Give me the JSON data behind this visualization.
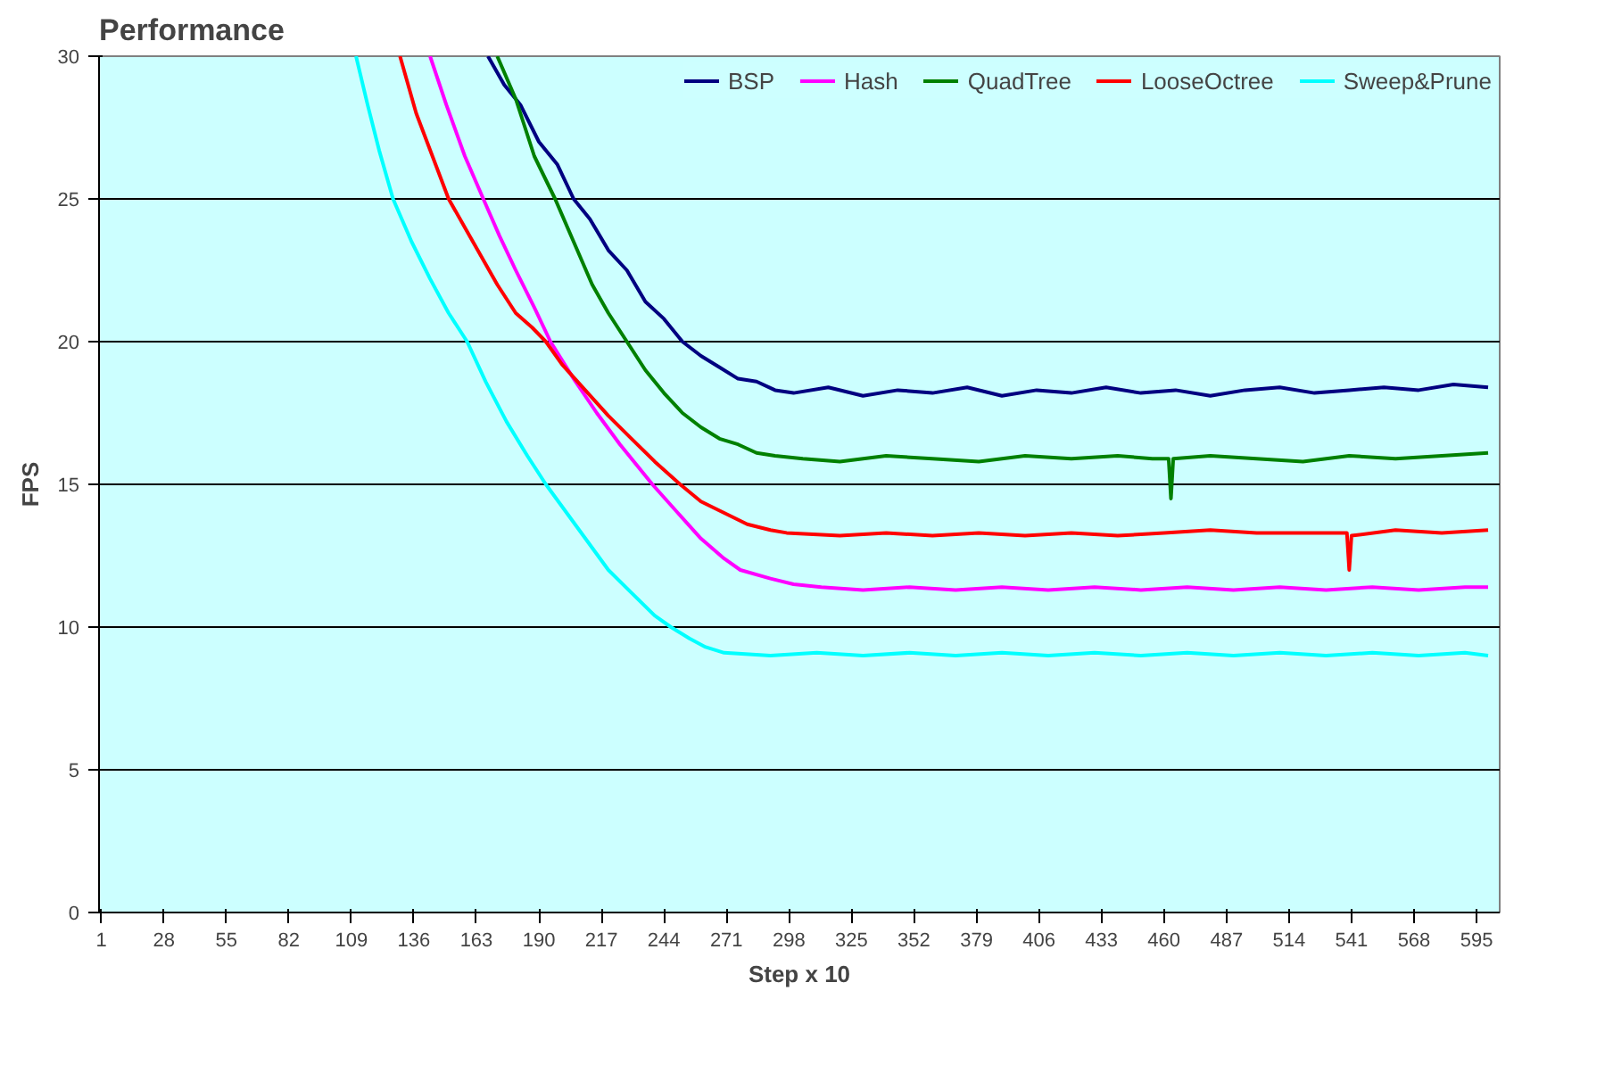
{
  "chart_data": {
    "type": "line",
    "title": "Performance",
    "xlabel": "Step x 10",
    "ylabel": "FPS",
    "xlim": [
      0,
      605
    ],
    "ylim": [
      0,
      30
    ],
    "xticks": [
      1,
      28,
      55,
      82,
      109,
      136,
      163,
      190,
      217,
      244,
      271,
      298,
      325,
      352,
      379,
      406,
      433,
      460,
      487,
      514,
      541,
      568,
      595
    ],
    "yticks": [
      0,
      5,
      10,
      15,
      20,
      25,
      30
    ],
    "grid": "y",
    "legend": "top right",
    "series": [
      {
        "name": "BSP",
        "color": "#000080",
        "x": [
          168,
          175,
          182,
          190,
          198,
          205,
          212,
          220,
          228,
          236,
          244,
          252,
          260,
          268,
          276,
          284,
          292,
          300,
          315,
          330,
          345,
          360,
          375,
          390,
          405,
          420,
          435,
          450,
          465,
          480,
          495,
          510,
          525,
          540,
          555,
          570,
          585,
          600
        ],
        "values": [
          30,
          29,
          28.3,
          27,
          26.2,
          25,
          24.3,
          23.2,
          22.5,
          21.4,
          20.8,
          20,
          19.5,
          19.1,
          18.7,
          18.6,
          18.3,
          18.2,
          18.4,
          18.1,
          18.3,
          18.2,
          18.4,
          18.1,
          18.3,
          18.2,
          18.4,
          18.2,
          18.3,
          18.1,
          18.3,
          18.4,
          18.2,
          18.3,
          18.4,
          18.3,
          18.5,
          18.4
        ]
      },
      {
        "name": "Hash",
        "color": "#ff00ff",
        "x": [
          143,
          150,
          158,
          166,
          173,
          180,
          188,
          195,
          205,
          215,
          225,
          239,
          250,
          260,
          270,
          277,
          290,
          300,
          312,
          330,
          350,
          370,
          390,
          410,
          430,
          450,
          470,
          490,
          510,
          530,
          550,
          570,
          590,
          600
        ],
        "values": [
          30,
          28.3,
          26.5,
          25,
          23.7,
          22.5,
          21.2,
          20,
          18.7,
          17.5,
          16.4,
          15,
          14,
          13.1,
          12.4,
          12,
          11.7,
          11.5,
          11.4,
          11.3,
          11.4,
          11.3,
          11.4,
          11.3,
          11.4,
          11.3,
          11.4,
          11.3,
          11.4,
          11.3,
          11.4,
          11.3,
          11.4,
          11.4
        ]
      },
      {
        "name": "QuadTree",
        "color": "#008000",
        "x": [
          172,
          180,
          188,
          197,
          205,
          213,
          220,
          228,
          236,
          244,
          252,
          260,
          268,
          276,
          284,
          292,
          304,
          320,
          340,
          360,
          380,
          400,
          420,
          440,
          455,
          462,
          463,
          464,
          480,
          500,
          520,
          540,
          560,
          580,
          600
        ],
        "values": [
          30,
          28.5,
          26.5,
          25,
          23.5,
          22,
          21,
          20,
          19,
          18.2,
          17.5,
          17,
          16.6,
          16.4,
          16.1,
          16,
          15.9,
          15.8,
          16,
          15.9,
          15.8,
          16,
          15.9,
          16,
          15.9,
          15.9,
          14.5,
          15.9,
          16,
          15.9,
          15.8,
          16,
          15.9,
          16,
          16.1
        ]
      },
      {
        "name": "LooseOctree",
        "color": "#ff0000",
        "x": [
          130,
          137,
          144,
          151,
          158,
          165,
          172,
          180,
          187,
          193,
          200,
          210,
          220,
          230,
          240,
          251,
          260,
          270,
          280,
          290,
          297,
          320,
          340,
          360,
          380,
          400,
          420,
          440,
          460,
          480,
          500,
          520,
          539,
          540,
          541,
          560,
          580,
          600
        ],
        "values": [
          30,
          28,
          26.5,
          25,
          24,
          23,
          22,
          21,
          20.5,
          20,
          19.2,
          18.3,
          17.4,
          16.6,
          15.8,
          15,
          14.4,
          14,
          13.6,
          13.4,
          13.3,
          13.2,
          13.3,
          13.2,
          13.3,
          13.2,
          13.3,
          13.2,
          13.3,
          13.4,
          13.3,
          13.3,
          13.3,
          12,
          13.2,
          13.4,
          13.3,
          13.4
        ]
      },
      {
        "name": "Sweep&Prune",
        "color": "#00ffff",
        "x": [
          111,
          116,
          121,
          127,
          135,
          143,
          151,
          159,
          167,
          176,
          185,
          193,
          202,
          211,
          220,
          230,
          240,
          247,
          255,
          262,
          270,
          290,
          310,
          330,
          350,
          370,
          390,
          410,
          430,
          450,
          470,
          490,
          510,
          530,
          550,
          570,
          590,
          600
        ],
        "values": [
          30,
          28.3,
          26.7,
          25,
          23.5,
          22.2,
          21,
          20,
          18.6,
          17.2,
          16,
          15,
          14,
          13,
          12,
          11.2,
          10.4,
          10,
          9.6,
          9.3,
          9.1,
          9,
          9.1,
          9,
          9.1,
          9,
          9.1,
          9,
          9.1,
          9,
          9.1,
          9,
          9.1,
          9,
          9.1,
          9,
          9.1,
          9
        ]
      }
    ]
  }
}
